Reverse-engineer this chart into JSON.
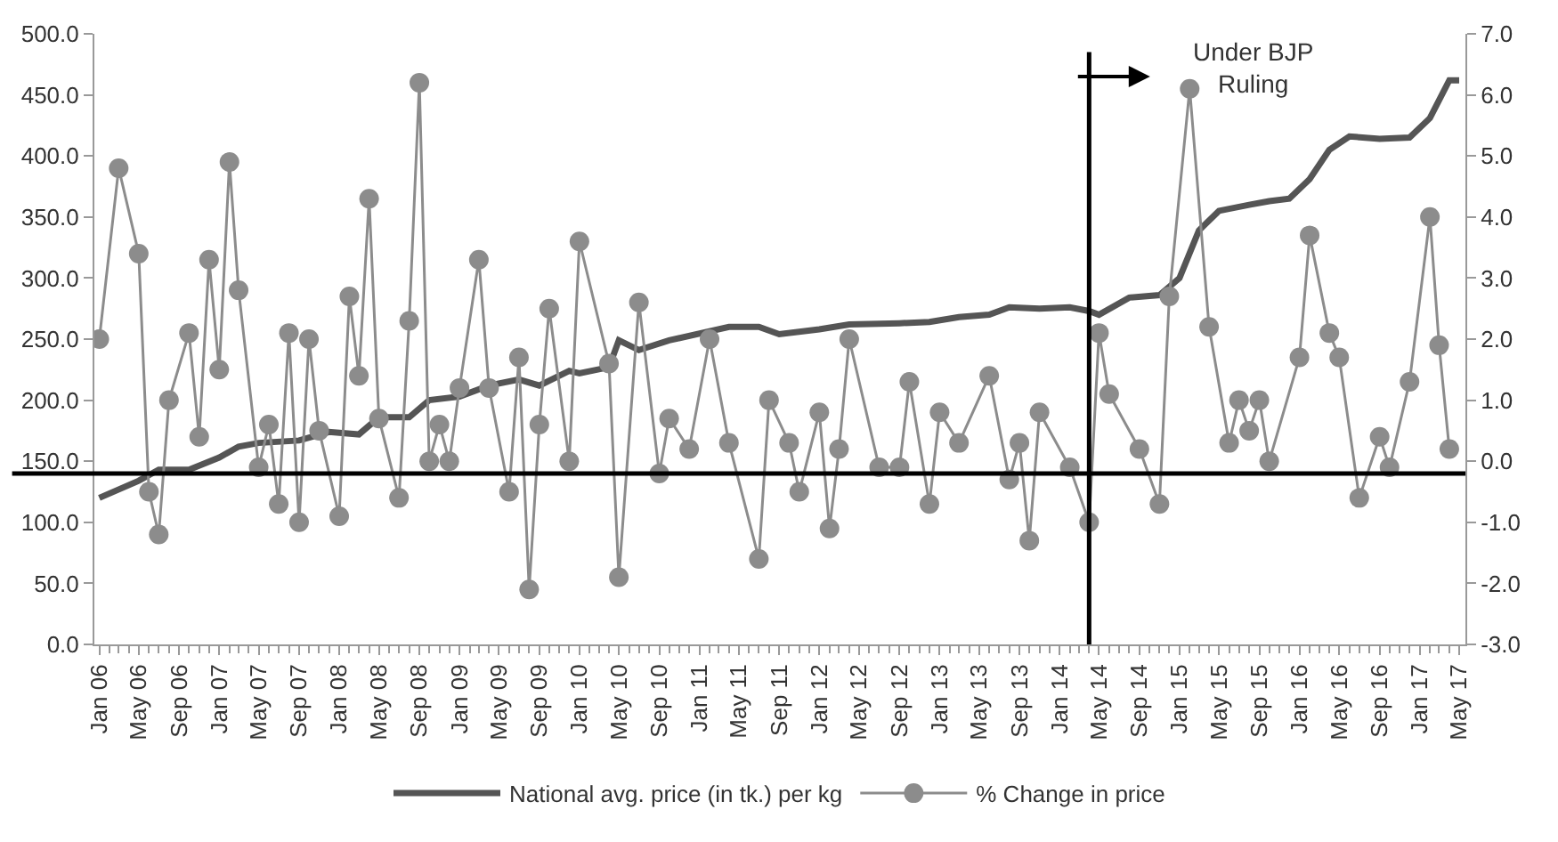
{
  "chart_data": {
    "type": "line",
    "annotations": [
      "Under BJP\nRuling"
    ],
    "series": [
      {
        "name": "National avg. price (in tk.) per kg",
        "color": "#555555",
        "axis": "y",
        "marker": "none",
        "x": [
          "2006-01",
          "2006-05",
          "2006-07",
          "2006-10",
          "2007-01",
          "2007-03",
          "2007-05",
          "2007-09",
          "2007-12",
          "2008-03",
          "2008-05",
          "2008-08",
          "2008-10",
          "2009-01",
          "2009-04",
          "2009-07",
          "2009-09",
          "2009-12",
          "2010-01",
          "2010-04",
          "2010-05",
          "2010-07",
          "2010-10",
          "2011-04",
          "2011-07",
          "2011-09",
          "2012-01",
          "2012-04",
          "2012-09",
          "2012-12",
          "2013-03",
          "2013-06",
          "2013-08",
          "2013-11",
          "2014-02",
          "2014-04",
          "2014-05",
          "2014-08",
          "2014-11",
          "2015-01",
          "2015-03",
          "2015-05",
          "2015-08",
          "2015-10",
          "2015-12",
          "2016-02",
          "2016-04",
          "2016-06",
          "2016-09",
          "2016-12",
          "2017-02",
          "2017-04",
          "2017-05"
        ],
        "values": [
          120,
          134,
          143,
          143,
          153,
          162,
          165,
          167,
          174,
          172,
          186,
          186,
          200,
          203,
          212,
          217,
          212,
          224,
          222,
          227,
          249,
          241,
          249,
          260,
          260,
          254,
          258,
          262,
          263,
          264,
          268,
          270,
          276,
          275,
          276,
          273,
          270,
          284,
          286,
          300,
          339,
          355,
          360,
          363,
          365,
          381,
          405,
          416,
          414,
          415,
          431,
          462,
          462
        ]
      },
      {
        "name": "% Change in price",
        "color": "#8c8c8c",
        "axis": "y2",
        "marker": "circle",
        "x": [
          "2006-01",
          "2006-03",
          "2006-05",
          "2006-06",
          "2006-07",
          "2006-08",
          "2006-10",
          "2006-11",
          "2006-12",
          "2007-01",
          "2007-02",
          "2007-03",
          "2007-05",
          "2007-06",
          "2007-07",
          "2007-08",
          "2007-09",
          "2007-10",
          "2007-11",
          "2008-01",
          "2008-02",
          "2008-03",
          "2008-04",
          "2008-05",
          "2008-07",
          "2008-08",
          "2008-09",
          "2008-10",
          "2008-11",
          "2008-12",
          "2009-01",
          "2009-03",
          "2009-04",
          "2009-06",
          "2009-07",
          "2009-08",
          "2009-09",
          "2009-10",
          "2009-12",
          "2010-01",
          "2010-04",
          "2010-05",
          "2010-07",
          "2010-09",
          "2010-10",
          "2010-12",
          "2011-02",
          "2011-04",
          "2011-07",
          "2011-08",
          "2011-10",
          "2011-11",
          "2012-01",
          "2012-02",
          "2012-03",
          "2012-04",
          "2012-07",
          "2012-09",
          "2012-10",
          "2012-12",
          "2013-01",
          "2013-03",
          "2013-06",
          "2013-08",
          "2013-09",
          "2013-10",
          "2013-11",
          "2014-02",
          "2014-04",
          "2014-05",
          "2014-06",
          "2014-09",
          "2014-11",
          "2014-12",
          "2015-02",
          "2015-04",
          "2015-06",
          "2015-07",
          "2015-08",
          "2015-09",
          "2015-10",
          "2016-01",
          "2016-02",
          "2016-04",
          "2016-05",
          "2016-07",
          "2016-09",
          "2016-10",
          "2016-12",
          "2017-02",
          "2017-03",
          "2017-04"
        ],
        "values": [
          2.0,
          4.8,
          3.4,
          -0.5,
          -1.2,
          1.0,
          2.1,
          0.4,
          3.3,
          1.5,
          4.9,
          2.8,
          -0.1,
          0.6,
          -0.7,
          2.1,
          -1.0,
          2.0,
          0.5,
          -0.9,
          2.7,
          1.4,
          4.3,
          0.7,
          -0.6,
          2.3,
          6.2,
          0.0,
          0.6,
          0.0,
          1.2,
          3.3,
          1.2,
          -0.5,
          1.7,
          -2.1,
          0.6,
          2.5,
          0.0,
          3.6,
          1.6,
          -1.9,
          2.6,
          -0.2,
          0.7,
          0.2,
          2.0,
          0.3,
          -1.6,
          1.0,
          0.3,
          -0.5,
          0.8,
          -1.1,
          0.2,
          2.0,
          -0.1,
          -0.1,
          1.3,
          -0.7,
          0.8,
          0.3,
          1.4,
          -0.3,
          0.3,
          -1.3,
          0.8,
          -0.1,
          -1.0,
          2.1,
          1.1,
          0.2,
          -0.7,
          2.7,
          6.1,
          2.2,
          0.3,
          1.0,
          0.5,
          1.0,
          0.0,
          1.7,
          3.7,
          2.1,
          1.7,
          -0.6,
          0.4,
          -0.1,
          1.3,
          4.0,
          1.9,
          0.2
        ]
      }
    ],
    "xlim": [
      "2005-12-17",
      "2017-05-20"
    ],
    "xticks": [
      {
        "value": "2006-01",
        "label": "Jan 06"
      },
      {
        "value": "2006-05",
        "label": "May 06"
      },
      {
        "value": "2006-09",
        "label": "Sep 06"
      },
      {
        "value": "2007-01",
        "label": "Jan 07"
      },
      {
        "value": "2007-05",
        "label": "May 07"
      },
      {
        "value": "2007-09",
        "label": "Sep 07"
      },
      {
        "value": "2008-01",
        "label": "Jan 08"
      },
      {
        "value": "2008-05",
        "label": "May 08"
      },
      {
        "value": "2008-09",
        "label": "Sep 08"
      },
      {
        "value": "2009-01",
        "label": "Jan 09"
      },
      {
        "value": "2009-05",
        "label": "May 09"
      },
      {
        "value": "2009-09",
        "label": "Sep 09"
      },
      {
        "value": "2010-01",
        "label": "Jan 10"
      },
      {
        "value": "2010-05",
        "label": "May 10"
      },
      {
        "value": "2010-09",
        "label": "Sep 10"
      },
      {
        "value": "2011-01",
        "label": "Jan 11"
      },
      {
        "value": "2011-05",
        "label": "May 11"
      },
      {
        "value": "2011-09",
        "label": "Sep 11"
      },
      {
        "value": "2012-01",
        "label": "Jan 12"
      },
      {
        "value": "2012-05",
        "label": "May 12"
      },
      {
        "value": "2012-09",
        "label": "Sep 12"
      },
      {
        "value": "2013-01",
        "label": "Jan 13"
      },
      {
        "value": "2013-05",
        "label": "May 13"
      },
      {
        "value": "2013-09",
        "label": "Sep 13"
      },
      {
        "value": "2014-01",
        "label": "Jan 14"
      },
      {
        "value": "2014-05",
        "label": "May 14"
      },
      {
        "value": "2014-09",
        "label": "Sep 14"
      },
      {
        "value": "2015-01",
        "label": "Jan 15"
      },
      {
        "value": "2015-05",
        "label": "May 15"
      },
      {
        "value": "2015-09",
        "label": "Sep 15"
      },
      {
        "value": "2016-01",
        "label": "Jan 16"
      },
      {
        "value": "2016-05",
        "label": "May 16"
      },
      {
        "value": "2016-09",
        "label": "Sep 16"
      },
      {
        "value": "2017-01",
        "label": "Jan 17"
      },
      {
        "value": "2017-05",
        "label": "May 17"
      }
    ],
    "ylim": [
      0,
      500
    ],
    "yticks": [
      {
        "value": 0,
        "label": "0.0"
      },
      {
        "value": 50,
        "label": "50.0"
      },
      {
        "value": 100,
        "label": "100.0"
      },
      {
        "value": 150,
        "label": "150.0"
      },
      {
        "value": 200,
        "label": "200.0"
      },
      {
        "value": 250,
        "label": "250.0"
      },
      {
        "value": 300,
        "label": "300.0"
      },
      {
        "value": 350,
        "label": "350.0"
      },
      {
        "value": 400,
        "label": "400.0"
      },
      {
        "value": 450,
        "label": "450.0"
      },
      {
        "value": 500,
        "label": "500.0"
      }
    ],
    "y2lim": [
      -3,
      7
    ],
    "y2ticks": [
      {
        "value": -3,
        "label": "-3.0"
      },
      {
        "value": -2,
        "label": "-2.0"
      },
      {
        "value": -1,
        "label": "-1.0"
      },
      {
        "value": 0,
        "label": "0.0"
      },
      {
        "value": 1,
        "label": "1.0"
      },
      {
        "value": 2,
        "label": "2.0"
      },
      {
        "value": 3,
        "label": "3.0"
      },
      {
        "value": 4,
        "label": "4.0"
      },
      {
        "value": 5,
        "label": "5.0"
      },
      {
        "value": 6,
        "label": "6.0"
      },
      {
        "value": 7,
        "label": "7.0"
      }
    ],
    "ref_lines": [
      {
        "axis": "y2",
        "value": -0.2,
        "color": "#000000"
      },
      {
        "axis": "x",
        "value": "2014-04",
        "color": "#000000"
      }
    ],
    "legend": "bottom",
    "line_style": "solid"
  }
}
